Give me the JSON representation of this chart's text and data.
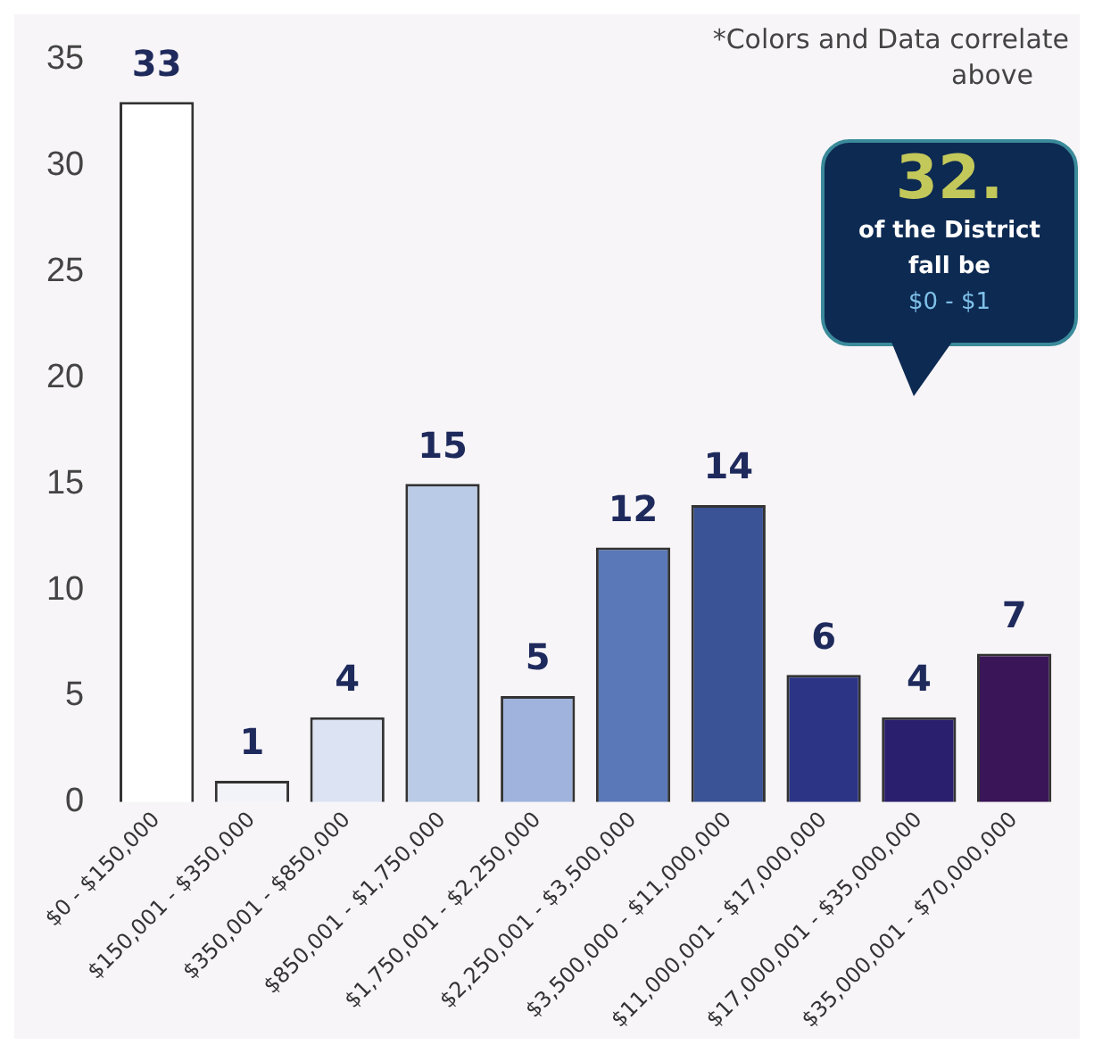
{
  "chart_data": {
    "type": "bar",
    "categories": [
      "$0 - $150,000",
      "$150,001 - $350,000",
      "$350,001 - $850,000",
      "$850,001 - $1,750,000",
      "$1,750,001 - $2,250,000",
      "$2,250,001 - $3,500,000",
      "$3,500,000 - $11,000,000",
      "$11,000,001 - $17,000,000",
      "$17,000,001 - $35,000,000",
      "$35,000,001 - $70,000,000"
    ],
    "values": [
      33,
      1,
      4,
      15,
      5,
      12,
      14,
      6,
      4,
      7
    ],
    "colors": [
      "#ffffff",
      "#f2f3f9",
      "#dce3f2",
      "#b9cbe6",
      "#9fb3dd",
      "#5a78b8",
      "#3a5396",
      "#2c3585",
      "#2a1f6e",
      "#3a1558"
    ],
    "ylim": [
      0,
      35
    ],
    "yticks": [
      0,
      5,
      10,
      15,
      20,
      25,
      30,
      35
    ],
    "grid": false,
    "legend": false,
    "data_labels": true,
    "annotations": [
      "*Colors and Data correlate",
      "above",
      "32.",
      "of the District",
      "fall be",
      "$0 - $1"
    ]
  }
}
